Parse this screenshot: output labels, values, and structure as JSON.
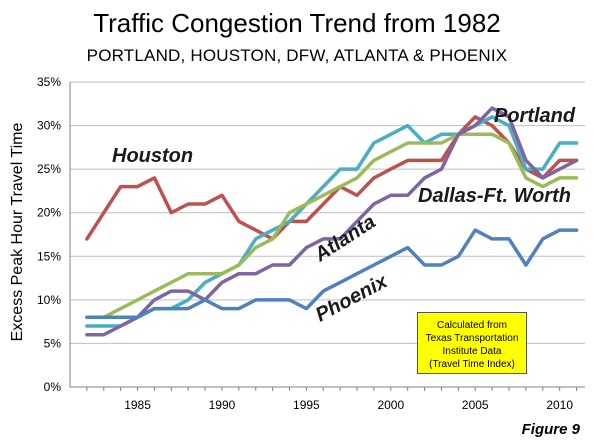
{
  "chart_data": {
    "type": "line",
    "title": "Traffic Congestion Trend from 1982",
    "subtitle": "PORTLAND, HOUSTON, DFW, ATLANTA & PHOENIX",
    "ylabel": "Excess Peak Hour Travel Time",
    "xlabel": "",
    "ylim": [
      0,
      35
    ],
    "xlim": [
      1981,
      2011.5
    ],
    "grid": true,
    "y_ticks": [
      "0%",
      "5%",
      "10%",
      "15%",
      "20%",
      "25%",
      "30%",
      "35%"
    ],
    "x_ticks": [
      "1985",
      "1990",
      "1995",
      "2000",
      "2005",
      "2010"
    ],
    "x": [
      1982,
      1983,
      1984,
      1985,
      1986,
      1987,
      1988,
      1989,
      1990,
      1991,
      1992,
      1993,
      1994,
      1995,
      1996,
      1997,
      1998,
      1999,
      2000,
      2001,
      2002,
      2003,
      2004,
      2005,
      2006,
      2007,
      2008,
      2009,
      2010,
      2011
    ],
    "series": [
      {
        "name": "Houston",
        "color": "#c0504d",
        "values": [
          17,
          20,
          23,
          23,
          24,
          20,
          21,
          21,
          22,
          19,
          18,
          17,
          19,
          19,
          21,
          23,
          22,
          24,
          25,
          26,
          26,
          26,
          29,
          31,
          30,
          28,
          25,
          24,
          26,
          26
        ]
      },
      {
        "name": "Portland",
        "color": "#4bacc6",
        "values": [
          7,
          7,
          7,
          8,
          9,
          9,
          10,
          12,
          13,
          14,
          17,
          18,
          19,
          21,
          23,
          25,
          25,
          28,
          29,
          30,
          28,
          29,
          29,
          30,
          31,
          30,
          25,
          25,
          28,
          28
        ]
      },
      {
        "name": "Dallas-Ft. Worth",
        "color": "#9bbb59",
        "values": [
          8,
          8,
          9,
          10,
          11,
          12,
          13,
          13,
          13,
          14,
          16,
          17,
          20,
          21,
          22,
          23,
          24,
          26,
          27,
          28,
          28,
          28,
          29,
          29,
          29,
          28,
          24,
          23,
          24,
          24
        ]
      },
      {
        "name": "Atlanta",
        "color": "#8064a2",
        "values": [
          6,
          6,
          7,
          8,
          10,
          11,
          11,
          10,
          12,
          13,
          13,
          14,
          14,
          16,
          17,
          17,
          19,
          21,
          22,
          22,
          24,
          25,
          29,
          30,
          32,
          31,
          26,
          24,
          25,
          26
        ]
      },
      {
        "name": "Phoenix",
        "color": "#4f81bd",
        "values": [
          8,
          8,
          8,
          8,
          9,
          9,
          9,
          10,
          9,
          9,
          10,
          10,
          10,
          9,
          11,
          12,
          13,
          14,
          15,
          16,
          14,
          14,
          15,
          18,
          17,
          17,
          14,
          17,
          18,
          18
        ]
      }
    ],
    "series_labels": [
      "Houston",
      "Portland",
      "Dallas-Ft. Worth",
      "Atlanta",
      "Phoenix"
    ],
    "note_lines": [
      "Calculated from",
      "Texas Transportation",
      "Institute Data",
      "(Travel Time Index)"
    ],
    "figure_label": "Figure 9"
  }
}
